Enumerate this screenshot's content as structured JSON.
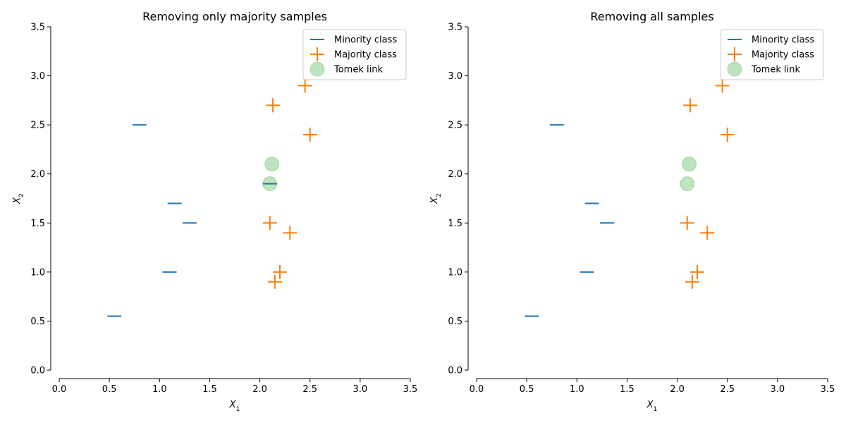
{
  "chart_data": [
    {
      "type": "scatter",
      "title": "Removing only majority samples",
      "xlabel": "X_1",
      "ylabel": "X_2",
      "xlim": [
        0.0,
        3.5
      ],
      "ylim": [
        0.0,
        3.5
      ],
      "xticks": [
        0.0,
        0.5,
        1.0,
        1.5,
        2.0,
        2.5,
        3.0,
        3.5
      ],
      "yticks": [
        0.0,
        0.5,
        1.0,
        1.5,
        2.0,
        2.5,
        3.0,
        3.5
      ],
      "xtick_labels": [
        "0.0",
        "0.5",
        "1.0",
        "1.5",
        "2.0",
        "2.5",
        "3.0",
        "3.5"
      ],
      "ytick_labels": [
        "0.0",
        "0.5",
        "1.0",
        "1.5",
        "2.0",
        "2.5",
        "3.0",
        "3.5"
      ],
      "grid": false,
      "legend_position": "top-right",
      "series": [
        {
          "name": "Minority class",
          "marker": "horizontal-line",
          "color": "#1f77b4",
          "points": [
            [
              0.55,
              0.55
            ],
            [
              1.1,
              1.0
            ],
            [
              1.3,
              1.5
            ],
            [
              1.15,
              1.7
            ],
            [
              0.8,
              2.5
            ],
            [
              2.1,
              1.9
            ]
          ]
        },
        {
          "name": "Majority class",
          "marker": "plus",
          "color": "#ff7f0e",
          "points": [
            [
              2.15,
              0.9
            ],
            [
              2.2,
              1.0
            ],
            [
              2.1,
              1.5
            ],
            [
              2.3,
              1.4
            ],
            [
              2.5,
              2.4
            ],
            [
              2.13,
              2.7
            ],
            [
              2.45,
              2.9
            ]
          ]
        },
        {
          "name": "Tomek link",
          "marker": "circle",
          "color": "#2ca02c",
          "points": [
            [
              2.1,
              1.9
            ],
            [
              2.12,
              2.1
            ]
          ]
        }
      ]
    },
    {
      "type": "scatter",
      "title": "Removing all samples",
      "xlabel": "X_1",
      "ylabel": "X_2",
      "xlim": [
        0.0,
        3.5
      ],
      "ylim": [
        0.0,
        3.5
      ],
      "xticks": [
        0.0,
        0.5,
        1.0,
        1.5,
        2.0,
        2.5,
        3.0,
        3.5
      ],
      "yticks": [
        0.0,
        0.5,
        1.0,
        1.5,
        2.0,
        2.5,
        3.0,
        3.5
      ],
      "xtick_labels": [
        "0.0",
        "0.5",
        "1.0",
        "1.5",
        "2.0",
        "2.5",
        "3.0",
        "3.5"
      ],
      "ytick_labels": [
        "0.0",
        "0.5",
        "1.0",
        "1.5",
        "2.0",
        "2.5",
        "3.0",
        "3.5"
      ],
      "grid": false,
      "legend_position": "top-right",
      "series": [
        {
          "name": "Minority class",
          "marker": "horizontal-line",
          "color": "#1f77b4",
          "points": [
            [
              0.55,
              0.55
            ],
            [
              1.1,
              1.0
            ],
            [
              1.3,
              1.5
            ],
            [
              1.15,
              1.7
            ],
            [
              0.8,
              2.5
            ]
          ]
        },
        {
          "name": "Majority class",
          "marker": "plus",
          "color": "#ff7f0e",
          "points": [
            [
              2.15,
              0.9
            ],
            [
              2.2,
              1.0
            ],
            [
              2.1,
              1.5
            ],
            [
              2.3,
              1.4
            ],
            [
              2.5,
              2.4
            ],
            [
              2.13,
              2.7
            ],
            [
              2.45,
              2.9
            ]
          ]
        },
        {
          "name": "Tomek link",
          "marker": "circle",
          "color": "#2ca02c",
          "points": [
            [
              2.1,
              1.9
            ],
            [
              2.12,
              2.1
            ]
          ]
        }
      ]
    }
  ]
}
